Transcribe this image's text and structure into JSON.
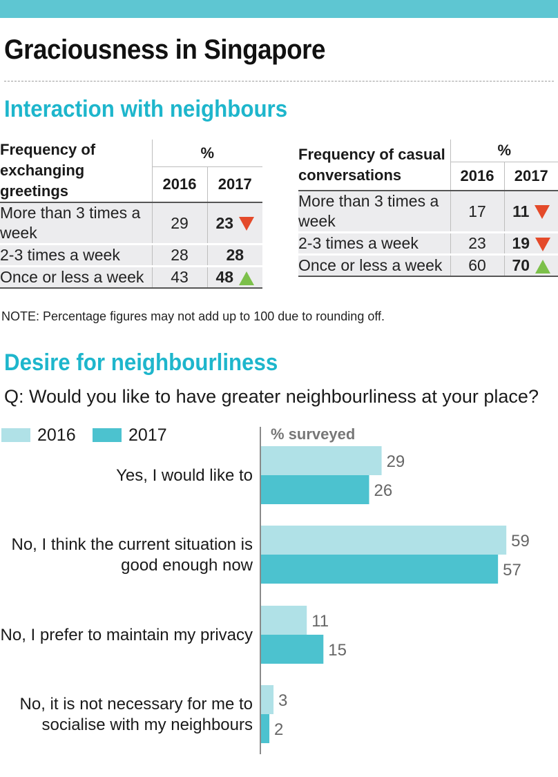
{
  "title": "Graciousness in Singapore",
  "section1": {
    "heading": "Interaction with neighbours",
    "tables": [
      {
        "header_label": "Frequency of exchanging greetings",
        "unit": "%",
        "years": [
          "2016",
          "2017"
        ],
        "rows": [
          {
            "label": "More than 3 times a week",
            "v2016": "29",
            "v2017": "23",
            "trend": "down"
          },
          {
            "label": "2-3 times a week",
            "v2016": "28",
            "v2017": "28",
            "trend": "none"
          },
          {
            "label": "Once or less a week",
            "v2016": "43",
            "v2017": "48",
            "trend": "up"
          }
        ]
      },
      {
        "header_label": "Frequency of casual conversations",
        "unit": "%",
        "years": [
          "2016",
          "2017"
        ],
        "rows": [
          {
            "label": "More than 3 times a week",
            "v2016": "17",
            "v2017": "11",
            "trend": "down"
          },
          {
            "label": "2-3 times a week",
            "v2016": "23",
            "v2017": "19",
            "trend": "down"
          },
          {
            "label": "Once or less a week",
            "v2016": "60",
            "v2017": "70",
            "trend": "up"
          }
        ]
      }
    ],
    "trend_colors": {
      "down": "#e44a2a",
      "up": "#7cc04a"
    },
    "note": "NOTE: Percentage figures may not add up to 100 due to rounding off."
  },
  "section2": {
    "heading": "Desire for neighbourliness",
    "question": "Q: Would you like to have greater neighbourliness at your place?"
  },
  "colors": {
    "accent_bar": "#5ec6d2",
    "heading": "#1eb6cc"
  },
  "chart_data": {
    "type": "bar",
    "orientation": "horizontal",
    "ylabel": "% surveyed",
    "categories": [
      [
        "Yes, I would like to"
      ],
      [
        "No, I think the current situation is",
        "good enough now"
      ],
      [
        "No, I prefer to maintain my privacy"
      ],
      [
        "No, it is not necessary for me to",
        "socialise with my neighbours"
      ]
    ],
    "series": [
      {
        "name": "2016",
        "color": "#b0e1e7",
        "values": [
          29,
          59,
          11,
          3
        ]
      },
      {
        "name": "2017",
        "color": "#4cc2cf",
        "values": [
          26,
          57,
          15,
          2
        ]
      }
    ],
    "legend_position": "top-left",
    "grid": false,
    "xlim": [
      0,
      60
    ]
  }
}
